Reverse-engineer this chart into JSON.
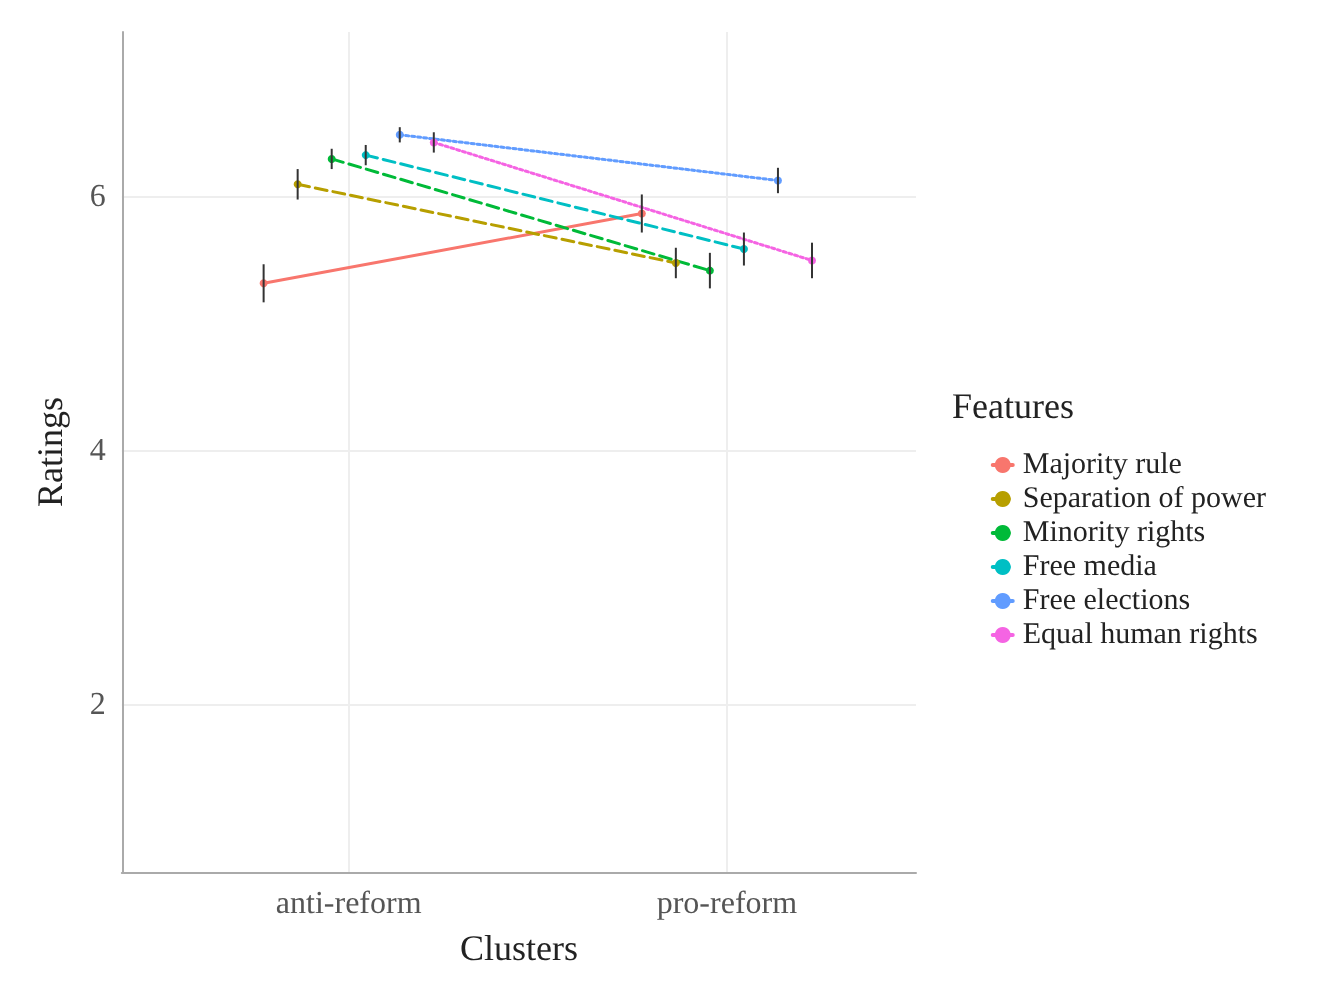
{
  "chart_data": {
    "type": "line",
    "xlabel": "Clusters",
    "ylabel": "Ratings",
    "legend_title": "Features",
    "categories": [
      "anti-reform",
      "pro-reform"
    ],
    "ylim": [
      0.68,
      7.3
    ],
    "yticks": [
      2,
      4,
      6
    ],
    "grid": true,
    "legend": "right",
    "marker": "circle",
    "series": [
      {
        "name": "Majority rule",
        "color": "#F8766D",
        "line_style": "solid",
        "values": [
          5.32,
          5.87
        ],
        "errors": [
          0.15,
          0.15
        ]
      },
      {
        "name": "Separation of power",
        "color": "#B79F00",
        "line_style": "dashed",
        "values": [
          6.1,
          5.48
        ],
        "errors": [
          0.12,
          0.12
        ]
      },
      {
        "name": "Minority rights",
        "color": "#00BA38",
        "line_style": "dashed",
        "values": [
          6.3,
          5.42
        ],
        "errors": [
          0.08,
          0.14
        ]
      },
      {
        "name": "Free media",
        "color": "#00BFC4",
        "line_style": "dashed",
        "values": [
          6.33,
          5.59
        ],
        "errors": [
          0.08,
          0.13
        ]
      },
      {
        "name": "Free elections",
        "color": "#619CFF",
        "line_style": "dotted",
        "values": [
          6.49,
          6.13
        ],
        "errors": [
          0.06,
          0.1
        ]
      },
      {
        "name": "Equal human rights",
        "color": "#F564E3",
        "line_style": "dotted",
        "values": [
          6.43,
          5.5
        ],
        "errors": [
          0.08,
          0.14
        ]
      }
    ]
  }
}
